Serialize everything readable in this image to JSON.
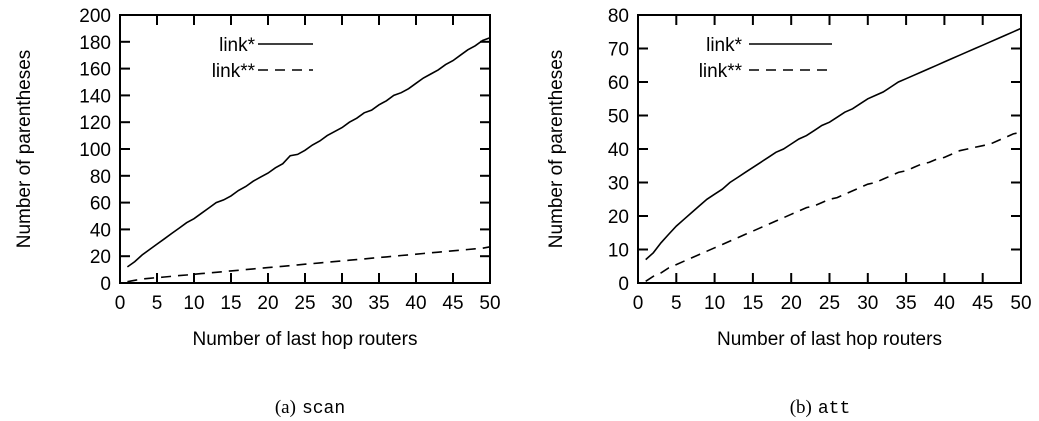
{
  "chart_data": [
    {
      "type": "line",
      "xlabel": "Number of last hop routers",
      "ylabel": "Number of parentheses",
      "xlim": [
        0,
        50
      ],
      "ylim": [
        0,
        200
      ],
      "xticks": [
        "0",
        "5",
        "10",
        "15",
        "20",
        "25",
        "30",
        "35",
        "40",
        "45",
        "50"
      ],
      "yticks": [
        "0",
        "20",
        "40",
        "60",
        "80",
        "100",
        "120",
        "140",
        "160",
        "180",
        "200"
      ],
      "legend_position": "top-center",
      "caption_prefix": "(a)",
      "caption_name": "scan",
      "series": [
        {
          "name": "link*",
          "style": "solid",
          "x": [
            1,
            2,
            3,
            4,
            5,
            6,
            7,
            8,
            9,
            10,
            11,
            12,
            13,
            14,
            15,
            16,
            17,
            18,
            19,
            20,
            21,
            22,
            23,
            24,
            25,
            26,
            27,
            28,
            29,
            30,
            31,
            32,
            33,
            34,
            35,
            36,
            37,
            38,
            39,
            40,
            41,
            42,
            43,
            44,
            45,
            46,
            47,
            48,
            49,
            50
          ],
          "y": [
            12,
            16,
            21,
            25,
            29,
            33,
            37,
            41,
            45,
            48,
            52,
            56,
            60,
            62,
            65,
            69,
            72,
            76,
            79,
            82,
            86,
            89,
            95,
            96,
            99,
            103,
            106,
            110,
            113,
            116,
            120,
            123,
            127,
            129,
            133,
            136,
            140,
            142,
            145,
            149,
            153,
            156,
            159,
            163,
            166,
            170,
            174,
            177,
            181,
            183
          ]
        },
        {
          "name": "link**",
          "style": "dashed",
          "x": [
            1,
            2,
            3,
            4,
            5,
            6,
            7,
            8,
            9,
            10,
            11,
            12,
            13,
            14,
            15,
            16,
            17,
            18,
            19,
            20,
            21,
            22,
            23,
            24,
            25,
            26,
            27,
            28,
            29,
            30,
            31,
            32,
            33,
            34,
            35,
            36,
            37,
            38,
            39,
            40,
            41,
            42,
            43,
            44,
            45,
            46,
            47,
            48,
            49,
            50
          ],
          "y": [
            1,
            2,
            3,
            3.5,
            4,
            4.5,
            5,
            5.5,
            6,
            6.5,
            7,
            7.5,
            8,
            8.5,
            9,
            9.5,
            10,
            10.5,
            11,
            11.5,
            12,
            12.5,
            13,
            13.5,
            14,
            14.5,
            15,
            15.5,
            16,
            16.5,
            17,
            17.5,
            18,
            18.5,
            19,
            19.5,
            20,
            20.5,
            21,
            21.5,
            22,
            22.5,
            23,
            23.5,
            24,
            24.5,
            25,
            25.5,
            26,
            27
          ]
        }
      ]
    },
    {
      "type": "line",
      "xlabel": "Number of last hop routers",
      "ylabel": "Number of parentheses",
      "xlim": [
        0,
        50
      ],
      "ylim": [
        0,
        80
      ],
      "xticks": [
        "0",
        "5",
        "10",
        "15",
        "20",
        "25",
        "30",
        "35",
        "40",
        "45",
        "50"
      ],
      "yticks": [
        "0",
        "10",
        "20",
        "30",
        "40",
        "50",
        "60",
        "70",
        "80"
      ],
      "legend_position": "top-center",
      "caption_prefix": "(b)",
      "caption_name": "att",
      "series": [
        {
          "name": "link*",
          "style": "solid",
          "x": [
            1,
            2,
            3,
            4,
            5,
            6,
            7,
            8,
            9,
            10,
            11,
            12,
            13,
            14,
            15,
            16,
            17,
            18,
            19,
            20,
            21,
            22,
            23,
            24,
            25,
            26,
            27,
            28,
            29,
            30,
            31,
            32,
            33,
            34,
            35,
            36,
            37,
            38,
            39,
            40,
            41,
            42,
            43,
            44,
            45,
            46,
            47,
            48,
            49,
            50
          ],
          "y": [
            7,
            9,
            12,
            14.5,
            17,
            19,
            21,
            23,
            25,
            26.5,
            28,
            30,
            31.5,
            33,
            34.5,
            36,
            37.5,
            39,
            40,
            41.5,
            43,
            44,
            45.5,
            47,
            48,
            49.5,
            51,
            52,
            53.5,
            55,
            56,
            57,
            58.5,
            60,
            61,
            62,
            63,
            64,
            65,
            66,
            67,
            68,
            69,
            70,
            71,
            72,
            73,
            74,
            75,
            76
          ]
        },
        {
          "name": "link**",
          "style": "dashed",
          "x": [
            1,
            2,
            3,
            4,
            5,
            6,
            7,
            8,
            9,
            10,
            11,
            12,
            13,
            14,
            15,
            16,
            17,
            18,
            19,
            20,
            21,
            22,
            23,
            24,
            25,
            26,
            27,
            28,
            29,
            30,
            31,
            32,
            33,
            34,
            35,
            36,
            37,
            38,
            39,
            40,
            41,
            42,
            43,
            44,
            45,
            46,
            47,
            48,
            49,
            50
          ],
          "y": [
            0.5,
            2,
            3,
            4.5,
            5.5,
            6.5,
            7.5,
            8.5,
            9.5,
            10.5,
            11.5,
            12.5,
            13.5,
            14.5,
            15.5,
            16.5,
            17.5,
            18.5,
            19.5,
            20.5,
            21.5,
            22.5,
            23,
            24,
            25,
            25.5,
            26.5,
            27.5,
            28.5,
            29.5,
            30,
            31,
            32,
            33,
            33.5,
            34.5,
            35.5,
            36,
            37,
            37.5,
            38.5,
            39.5,
            40,
            40.5,
            41,
            41.5,
            42.5,
            43.5,
            44.5,
            45
          ]
        }
      ]
    }
  ]
}
